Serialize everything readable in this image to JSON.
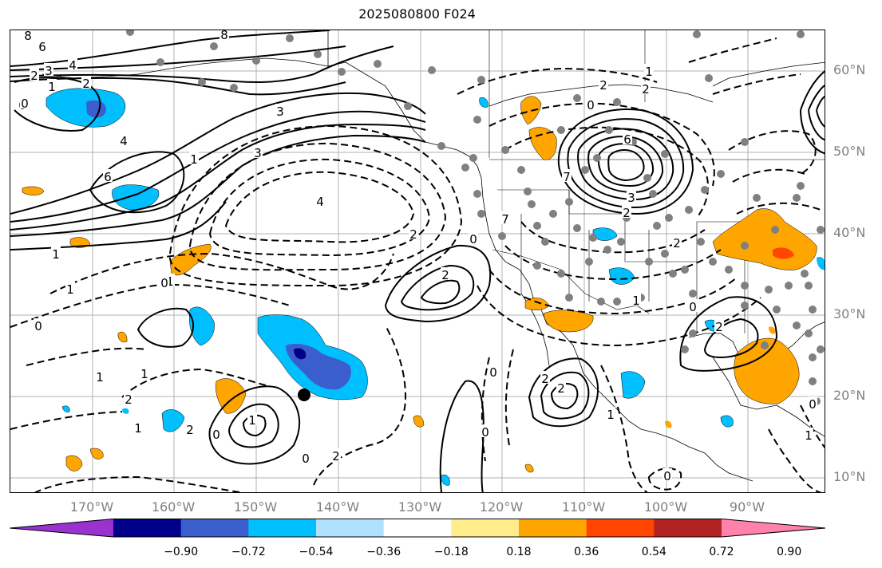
{
  "title": "2025080800 F024",
  "lat_labels": [
    "60°N",
    "50°N",
    "40°N",
    "30°N",
    "20°N",
    "10°N"
  ],
  "lon_labels": [
    "170°W",
    "160°W",
    "150°W",
    "140°W",
    "130°W",
    "120°W",
    "110°W",
    "100°W",
    "90°W"
  ],
  "colorbar": {
    "colors": [
      "#9a32cd",
      "#00008b",
      "#3a5fcd",
      "#00bfff",
      "#b0e2ff",
      "#ffffff",
      "#ffec8b",
      "#ffa500",
      "#ff4500",
      "#b22222",
      "#ff82ab"
    ],
    "tick_labels": [
      "−0.90",
      "−0.72",
      "−0.54",
      "−0.36",
      "−0.18",
      "0.18",
      "0.36",
      "0.54",
      "0.72",
      "0.90"
    ]
  },
  "contour_labels": [
    {
      "text": "8"
    },
    {
      "text": "6"
    },
    {
      "text": "3"
    },
    {
      "text": "4"
    },
    {
      "text": "2"
    },
    {
      "text": "1"
    },
    {
      "text": "0"
    },
    {
      "text": "2"
    },
    {
      "text": "4"
    },
    {
      "text": "6"
    },
    {
      "text": "3"
    },
    {
      "text": "8"
    },
    {
      "text": "1"
    },
    {
      "text": "1"
    },
    {
      "text": "0"
    },
    {
      "text": "1"
    },
    {
      "text": "0"
    },
    {
      "text": "3"
    },
    {
      "text": "4"
    },
    {
      "text": "2"
    },
    {
      "text": "0"
    },
    {
      "text": "2"
    },
    {
      "text": "1"
    },
    {
      "text": "0"
    },
    {
      "text": "1"
    },
    {
      "text": "2"
    },
    {
      "text": "1"
    },
    {
      "text": "2"
    },
    {
      "text": "0"
    },
    {
      "text": "1"
    },
    {
      "text": "0"
    },
    {
      "text": "2"
    },
    {
      "text": "1"
    },
    {
      "text": "0"
    },
    {
      "text": "7"
    },
    {
      "text": "6"
    },
    {
      "text": "0"
    },
    {
      "text": "7"
    },
    {
      "text": "3"
    },
    {
      "text": "2"
    },
    {
      "text": "2"
    },
    {
      "text": "2"
    },
    {
      "text": "1"
    },
    {
      "text": "2"
    },
    {
      "text": "0"
    },
    {
      "text": "2"
    },
    {
      "text": "1"
    },
    {
      "text": "0"
    },
    {
      "text": "2"
    },
    {
      "text": "2"
    },
    {
      "text": "1"
    },
    {
      "text": "0"
    },
    {
      "text": "1"
    },
    {
      "text": "0"
    }
  ]
}
